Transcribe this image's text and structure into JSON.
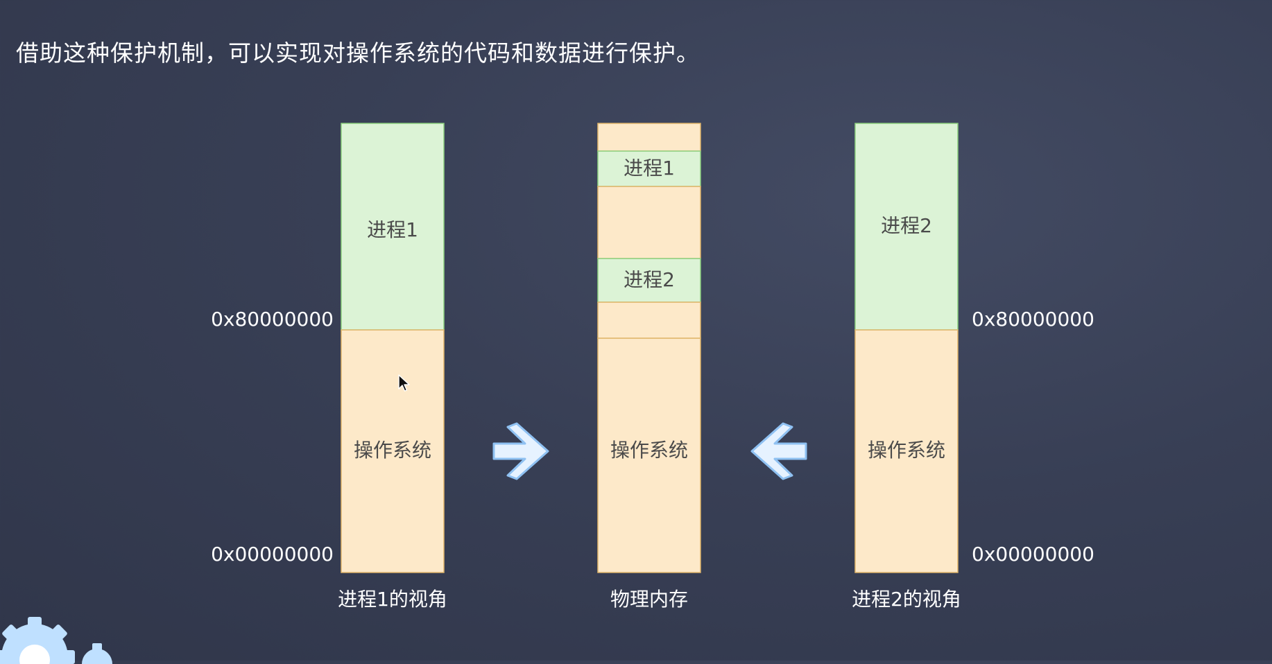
{
  "heading": "借助这种保护机制，可以实现对操作系统的代码和数据进行保护。",
  "diagram": {
    "left_view": {
      "caption": "进程1的视角",
      "upper_block": "进程1",
      "lower_block": "操作系统",
      "addr_mid": "0x80000000",
      "addr_bottom": "0x00000000"
    },
    "physical": {
      "caption": "物理内存",
      "block_process1": "进程1",
      "block_process2": "进程2",
      "block_os": "操作系统"
    },
    "right_view": {
      "caption": "进程2的视角",
      "upper_block": "进程2",
      "lower_block": "操作系统",
      "addr_mid": "0x80000000",
      "addr_bottom": "0x00000000"
    },
    "arrow_left_icon": "arrow-right-icon",
    "arrow_right_icon": "arrow-left-icon"
  },
  "colors": {
    "process_fill": "#dcf3d6",
    "process_stroke": "#8ccf7e",
    "os_fill": "#fde9c9",
    "os_stroke": "#e0b56a",
    "arrow_fill": "#e6f2ff",
    "arrow_stroke": "#8fc1f2"
  }
}
